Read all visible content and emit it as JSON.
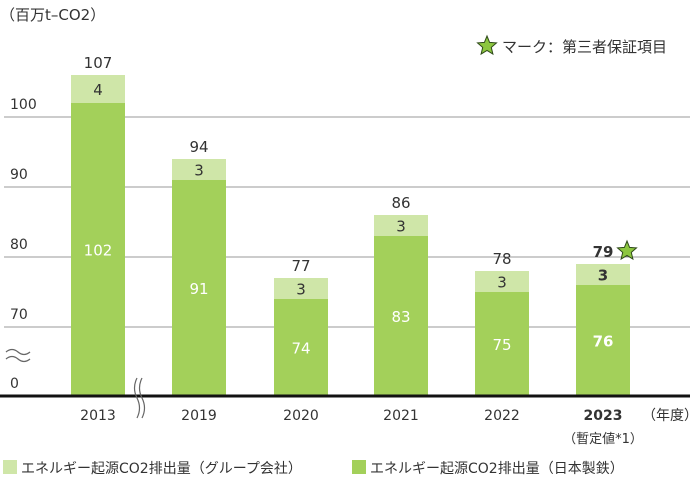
{
  "chart_data": {
    "type": "bar",
    "stacked": true,
    "unit_label": "（百万t–CO2）",
    "xlabel": "（年度）",
    "categories": [
      "2013",
      "2019",
      "2020",
      "2021",
      "2022",
      "2023"
    ],
    "category_notes": {
      "2023": "（暫定値*1）"
    },
    "bold_category": "2023",
    "series": [
      {
        "name": "エネルギー起源CO2排出量（日本製鉄）",
        "color": "#a3d05a",
        "values": [
          102,
          91,
          74,
          83,
          75,
          76
        ]
      },
      {
        "name": "エネルギー起源CO2排出量（グループ会社）",
        "color": "#cfe6a8",
        "values": [
          4,
          3,
          3,
          3,
          3,
          3
        ]
      }
    ],
    "totals": [
      107,
      94,
      77,
      86,
      78,
      79
    ],
    "yticks": [
      0,
      70,
      80,
      90,
      100
    ],
    "ylim": [
      0,
      107
    ],
    "axis_break": true,
    "grid": true,
    "legend_position": "bottom",
    "annotation": {
      "marker": "star",
      "text": "マーク：第三者保証項目",
      "applies_to": "2023"
    }
  }
}
